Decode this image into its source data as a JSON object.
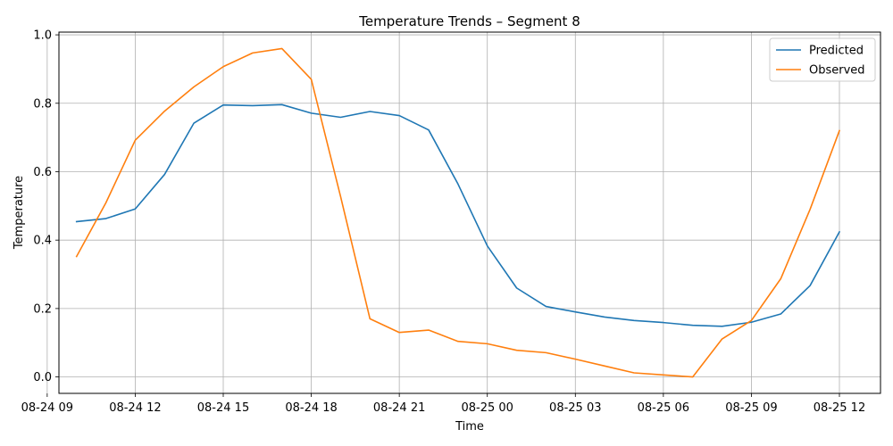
{
  "chart_data": {
    "type": "line",
    "title": "Temperature Trends – Segment 8",
    "xlabel": "Time",
    "ylabel": "Temperature",
    "x_unit": "hours since 08-24 09:00",
    "xlim": [
      0.4,
      28.4
    ],
    "ylim": [
      -0.048,
      1.008
    ],
    "grid": true,
    "legend_position": "top-right",
    "x_ticks": [
      {
        "value": 0,
        "label": "08-24 09"
      },
      {
        "value": 3,
        "label": "08-24 12"
      },
      {
        "value": 6,
        "label": "08-24 15"
      },
      {
        "value": 9,
        "label": "08-24 18"
      },
      {
        "value": 12,
        "label": "08-24 21"
      },
      {
        "value": 15,
        "label": "08-25 00"
      },
      {
        "value": 18,
        "label": "08-25 03"
      },
      {
        "value": 21,
        "label": "08-25 06"
      },
      {
        "value": 24,
        "label": "08-25 09"
      },
      {
        "value": 27,
        "label": "08-25 12"
      }
    ],
    "y_ticks": [
      {
        "value": 0.0,
        "label": "0.0"
      },
      {
        "value": 0.2,
        "label": "0.2"
      },
      {
        "value": 0.4,
        "label": "0.4"
      },
      {
        "value": 0.6,
        "label": "0.6"
      },
      {
        "value": 0.8,
        "label": "0.8"
      },
      {
        "value": 1.0,
        "label": "1.0"
      }
    ],
    "x": [
      1,
      2,
      3,
      4,
      5,
      6,
      7,
      8,
      9,
      10,
      11,
      12,
      13,
      14,
      15,
      16,
      17,
      18,
      19,
      20,
      21,
      22,
      23,
      24,
      25,
      26,
      27
    ],
    "series": [
      {
        "name": "Predicted",
        "color": "#1f77b4",
        "values": [
          0.454,
          0.463,
          0.491,
          0.592,
          0.742,
          0.795,
          0.793,
          0.796,
          0.771,
          0.759,
          0.776,
          0.764,
          0.722,
          0.564,
          0.383,
          0.26,
          0.206,
          0.19,
          0.175,
          0.165,
          0.159,
          0.151,
          0.148,
          0.16,
          0.184,
          0.267,
          0.424
        ]
      },
      {
        "name": "Observed",
        "color": "#ff7f0e",
        "values": [
          0.352,
          0.509,
          0.692,
          0.777,
          0.848,
          0.907,
          0.947,
          0.96,
          0.87,
          0.527,
          0.17,
          0.13,
          0.137,
          0.104,
          0.097,
          0.078,
          0.071,
          0.052,
          0.032,
          0.012,
          0.006,
          0.0,
          0.111,
          0.165,
          0.287,
          0.49,
          0.72
        ]
      }
    ]
  }
}
